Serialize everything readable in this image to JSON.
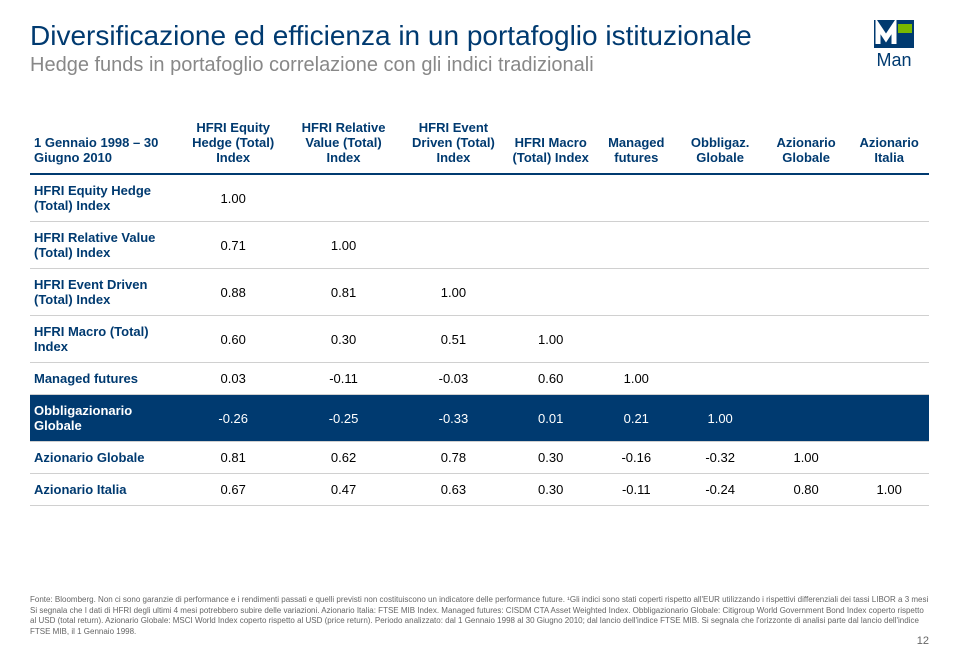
{
  "title": "Diversificazione ed efficienza in un portafoglio istituzionale",
  "subtitle": "Hedge funds in portafoglio correlazione con gli indici tradizionali",
  "logo": {
    "brand": "Man",
    "color_primary": "#003a70",
    "color_accent": "#7ab800"
  },
  "period_label": "1 Gennaio 1998 – 30 Giugno 2010",
  "columns": [
    "HFRI Equity Hedge (Total) Index",
    "HFRI Relative Value (Total) Index",
    "HFRI Event Driven (Total) Index",
    "HFRI Macro (Total) Index",
    "Managed futures",
    "Obbligaz. Globale",
    "Azionario Globale",
    "Azionario Italia"
  ],
  "rows": [
    {
      "label": "HFRI Equity Hedge (Total) Index",
      "vals": [
        "1.00",
        "",
        "",
        "",
        "",
        "",
        "",
        ""
      ]
    },
    {
      "label": "HFRI Relative Value (Total) Index",
      "vals": [
        "0.71",
        "1.00",
        "",
        "",
        "",
        "",
        "",
        ""
      ]
    },
    {
      "label": "HFRI Event Driven (Total) Index",
      "vals": [
        "0.88",
        "0.81",
        "1.00",
        "",
        "",
        "",
        "",
        ""
      ]
    },
    {
      "label": "HFRI Macro (Total) Index",
      "vals": [
        "0.60",
        "0.30",
        "0.51",
        "1.00",
        "",
        "",
        "",
        ""
      ]
    },
    {
      "label": "Managed futures",
      "vals": [
        "0.03",
        "-0.11",
        "-0.03",
        "0.60",
        "1.00",
        "",
        "",
        ""
      ]
    },
    {
      "label": "Obbligazionario Globale",
      "vals": [
        "-0.26",
        "-0.25",
        "-0.33",
        "0.01",
        "0.21",
        "1.00",
        "",
        ""
      ],
      "highlight": true
    },
    {
      "label": "Azionario Globale",
      "vals": [
        "0.81",
        "0.62",
        "0.78",
        "0.30",
        "-0.16",
        "-0.32",
        "1.00",
        ""
      ]
    },
    {
      "label": "Azionario Italia",
      "vals": [
        "0.67",
        "0.47",
        "0.63",
        "0.30",
        "-0.11",
        "-0.24",
        "0.80",
        "1.00"
      ]
    }
  ],
  "footnote": "Fonte: Bloomberg. Non ci sono garanzie di performance e i rendimenti passati e quelli previsti non costituiscono un indicatore delle performance future. ¹Gli indici sono stati coperti rispetto all'EUR utilizzando i rispettivi differenziali dei tassi LIBOR a 3 mesi Si segnala che I dati di HFRI degli ultimi 4 mesi potrebbero subire delle variazioni. Azionario Italia: FTSE MIB Index. Managed futures: CISDM CTA Asset Weighted Index. Obbligazionario Globale: Citigroup World Government Bond Index coperto rispetto al USD (total return). Azionario Globale: MSCI World Index coperto rispetto al USD (price return). Periodo analizzato: dal 1 Gennaio 1998 al 30 Giugno 2010; dal lancio dell'indice FTSE MIB. Si segnala che l'orizzonte di analisi parte dal lancio dell'indice FTSE MIB, il 1 Gennaio 1998.",
  "page_number": "12",
  "styling": {
    "title_color": "#003a70",
    "subtitle_color": "#888888",
    "header_border_color": "#003a70",
    "row_border_color": "#d0d0d0",
    "highlight_bg": "#003a70",
    "highlight_fg": "#ffffff",
    "body_font": "Arial",
    "title_fontsize": 28,
    "subtitle_fontsize": 20,
    "cell_fontsize": 13,
    "footnote_fontsize": 8
  }
}
